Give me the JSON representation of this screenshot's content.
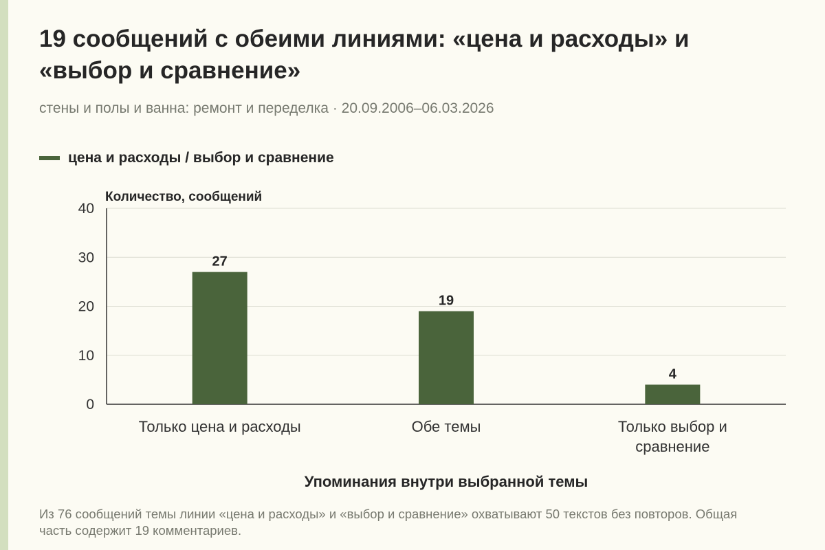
{
  "title": "19 сообщений с обеими линиями: «цена и расходы» и «выбор и сравнение»",
  "subtitle": "стены и полы и ванна: ремонт и переделка · 20.09.2006–06.03.2026",
  "note": "Из 76 сообщений темы линии «цена и расходы» и «выбор и сравнение» охватывают 50 текстов без повторов. Общая часть содержит 19 комментариев.",
  "colors": {
    "bar": "#4a643b",
    "grid": "#dcdcd2",
    "axis": "#333333",
    "accent": "#d3dfbf"
  },
  "chart_data": {
    "type": "bar",
    "categories": [
      [
        "Только цена и расходы"
      ],
      [
        "Обе темы"
      ],
      [
        "Только выбор и",
        "сравнение"
      ]
    ],
    "series": [
      {
        "name": "цена и расходы / выбор и сравнение",
        "values": [
          27,
          19,
          4
        ]
      }
    ],
    "ylabel": "Количество, сообщений",
    "xlabel": "Упоминания внутри выбранной темы",
    "ylim": [
      0,
      40
    ],
    "yticks": [
      0,
      10,
      20,
      30,
      40
    ],
    "grid": true,
    "legend": "top-left"
  }
}
